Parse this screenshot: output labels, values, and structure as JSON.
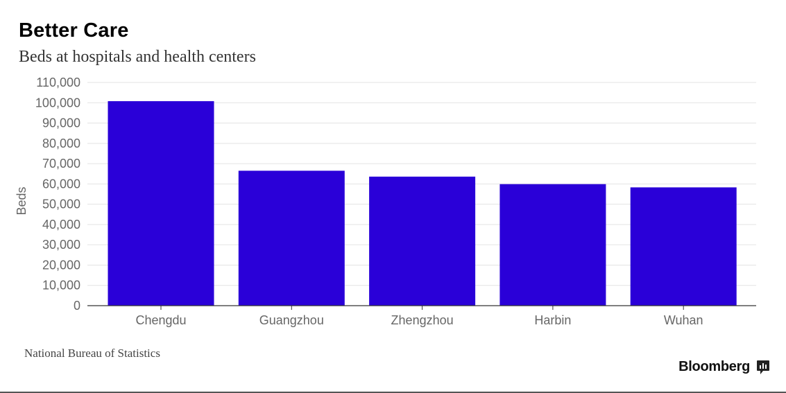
{
  "chart_data": {
    "type": "bar",
    "title": "Better Care",
    "subtitle": "Beds at hospitals and health centers",
    "xlabel": "",
    "ylabel": "Beds",
    "categories": [
      "Chengdu",
      "Guangzhou",
      "Zhengzhou",
      "Harbin",
      "Wuhan"
    ],
    "values": [
      100800,
      66500,
      63600,
      59900,
      58300
    ],
    "ylim": [
      0,
      110000
    ],
    "yticks": [
      0,
      10000,
      20000,
      30000,
      40000,
      50000,
      60000,
      70000,
      80000,
      90000,
      100000,
      110000
    ],
    "ytick_labels": [
      "0",
      "10,000",
      "20,000",
      "30,000",
      "40,000",
      "50,000",
      "60,000",
      "70,000",
      "80,000",
      "90,000",
      "100,000",
      "110,000"
    ],
    "grid": true,
    "legend": "none",
    "bar_color": "#2a00d8"
  },
  "footer": {
    "source": "National Bureau of Statistics",
    "brand": "Bloomberg",
    "brand_icon": "bloomberg-chart-icon"
  }
}
